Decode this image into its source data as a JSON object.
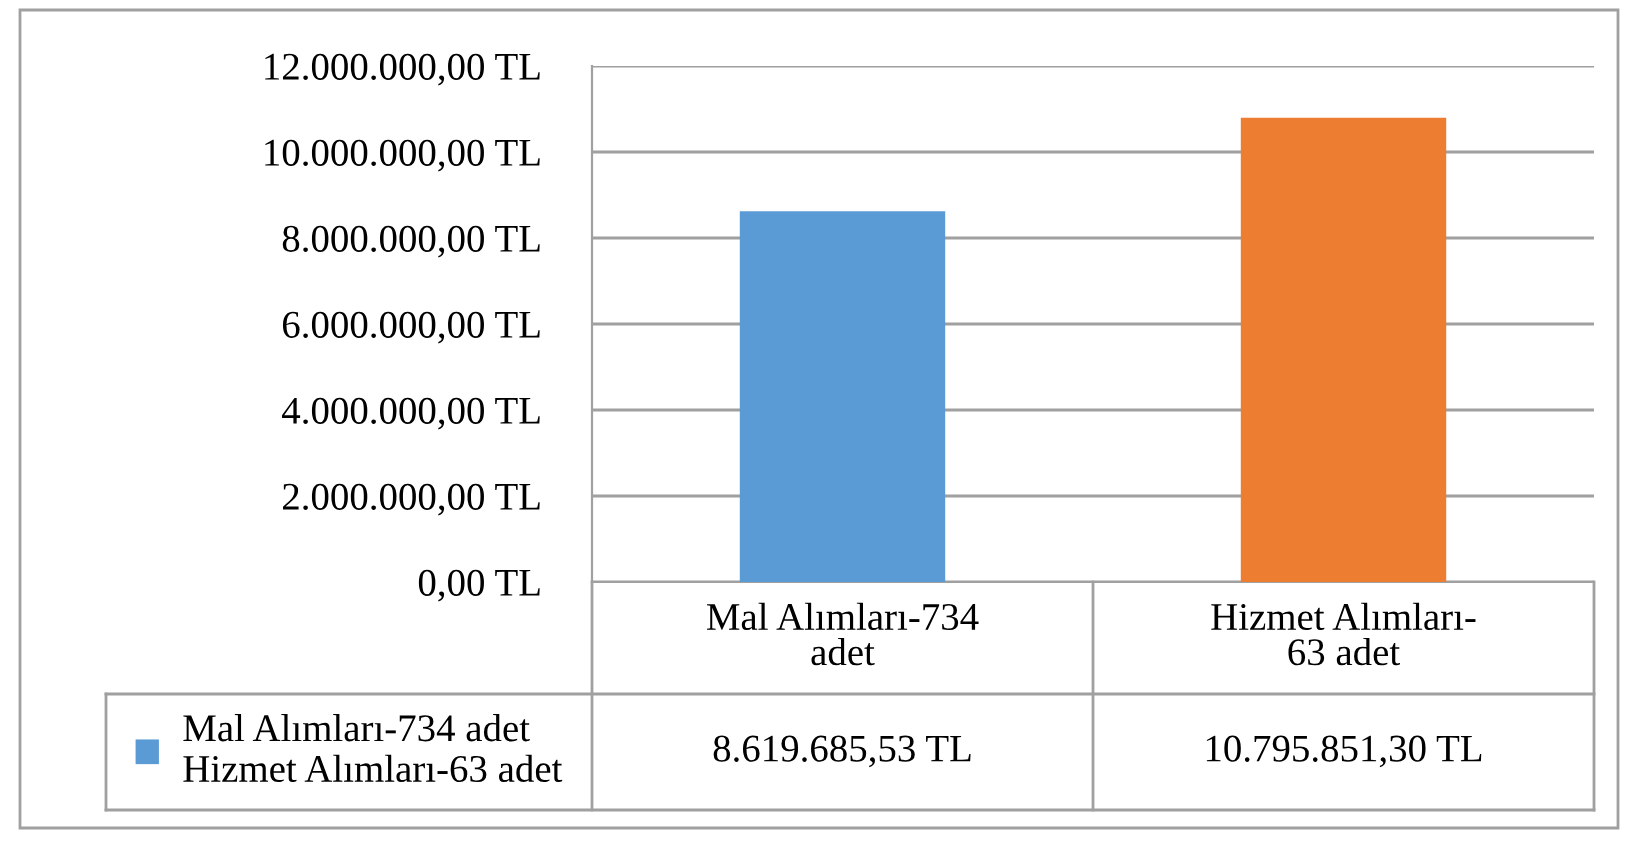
{
  "chart_data": {
    "type": "bar",
    "categories": [
      "Mal Alımları-734 adet",
      "Hizmet Alımları-63 adet"
    ],
    "series": [
      {
        "name": "Mal Alımları-734 adet Hizmet Alımları-63 adet",
        "colors": [
          "#5b9bd5",
          "#ed7d31"
        ],
        "values": [
          8619685.53,
          10795851.3
        ],
        "value_labels": [
          "8.619.685,53 TL",
          "10.795.851,30 TL"
        ]
      }
    ],
    "ylim": [
      0,
      12000000
    ],
    "yticks": [
      {
        "value": 0,
        "label": "0,00 TL"
      },
      {
        "value": 2000000,
        "label": "2.000.000,00 TL"
      },
      {
        "value": 4000000,
        "label": "4.000.000,00 TL"
      },
      {
        "value": 6000000,
        "label": "6.000.000,00 TL"
      },
      {
        "value": 8000000,
        "label": "8.000.000,00 TL"
      },
      {
        "value": 10000000,
        "label": "10.000.000,00 TL"
      },
      {
        "value": 12000000,
        "label": "12.000.000,00 TL"
      }
    ],
    "grid": "y",
    "legend": "bottom"
  }
}
